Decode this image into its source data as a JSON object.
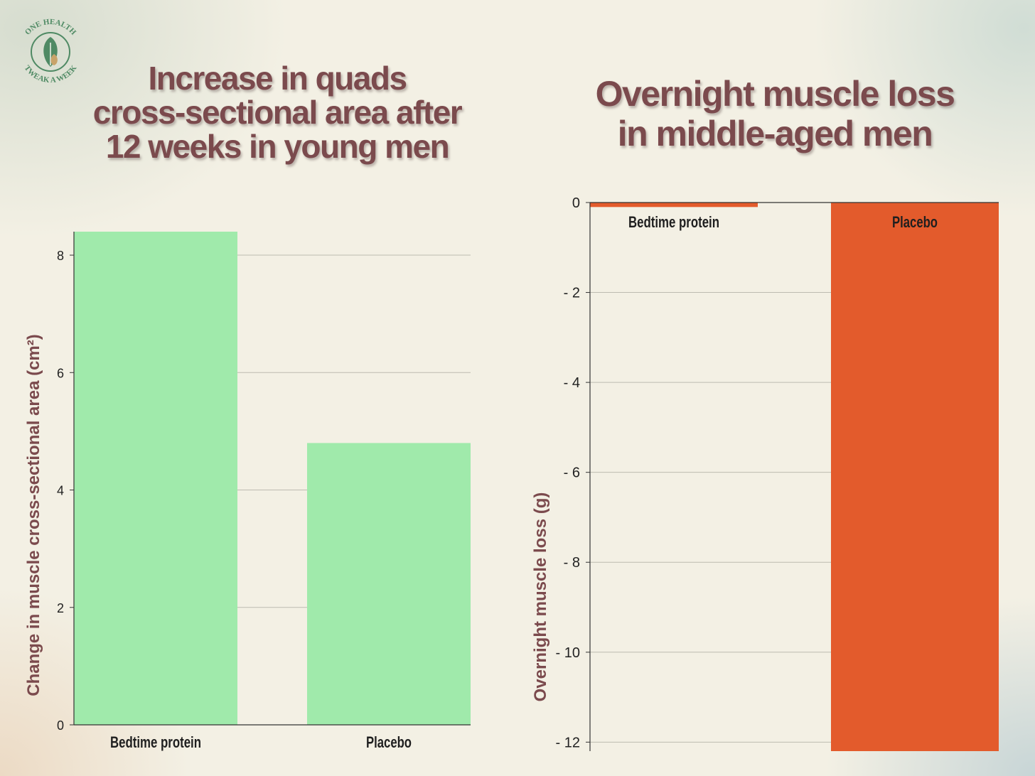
{
  "logo": {
    "top_text": "ONE HEALTH",
    "bottom_text": "TWEAK A WEEK",
    "icon": "leaf-drop-icon"
  },
  "chart_data": [
    {
      "type": "bar",
      "title": "Increase in quads cross-sectional area after 12 weeks in young men",
      "title_lines": [
        "Increase in quads",
        "cross-sectional area after",
        "12 weeks in young men"
      ],
      "categories": [
        "Bedtime protein",
        "Placebo"
      ],
      "values": [
        8.4,
        4.8
      ],
      "xlabel": "",
      "ylabel": "Change in muscle cross-sectional area (cm²)",
      "ylim": [
        0,
        8.4
      ],
      "yticks": [
        0,
        2,
        4,
        6,
        8
      ],
      "ytick_labels": [
        "0",
        "2",
        "4",
        "6",
        "8"
      ],
      "grid": true,
      "bar_color": "#a0eaab"
    },
    {
      "type": "bar",
      "title": "Overnight muscle loss in middle-aged men",
      "title_lines": [
        "Overnight muscle loss",
        "in middle-aged men"
      ],
      "categories": [
        "Bedtime protein",
        "Placebo"
      ],
      "values": [
        -0.1,
        -12.2
      ],
      "xlabel": "",
      "ylabel": "Overnight muscle loss (g)",
      "ylim": [
        -12.2,
        0
      ],
      "yticks": [
        0,
        -2,
        -4,
        -6,
        -8,
        -10,
        -12
      ],
      "ytick_labels": [
        "0",
        "- 2",
        "- 4",
        "- 6",
        "- 8",
        "- 10",
        "- 12"
      ],
      "grid": true,
      "bar_color": "#e35b2c"
    }
  ]
}
